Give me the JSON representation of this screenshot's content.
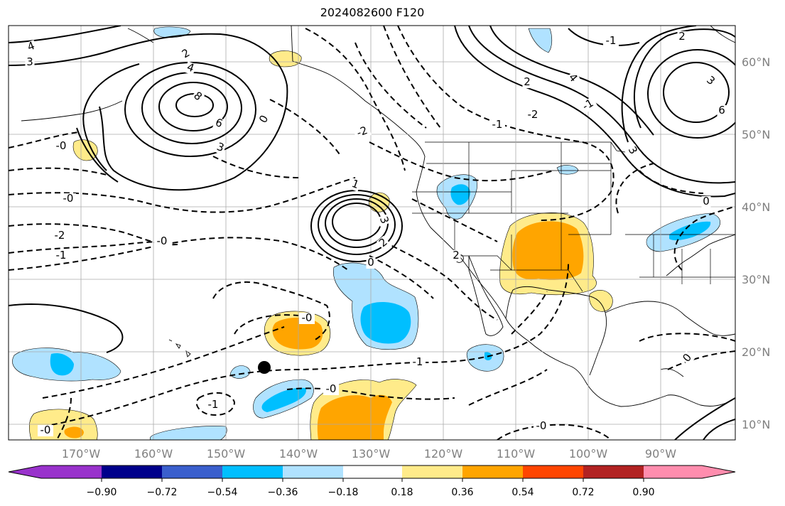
{
  "title": "2024082600 F120",
  "map": {
    "lon_labels": [
      "170°W",
      "160°W",
      "150°W",
      "140°W",
      "130°W",
      "120°W",
      "110°W",
      "100°W",
      "90°W"
    ],
    "lat_labels": [
      "60°N",
      "50°N",
      "40°N",
      "30°N",
      "20°N",
      "10°N"
    ],
    "contour_labels": [
      "4",
      "3",
      "2",
      "4",
      "8",
      "6",
      "3",
      "0",
      "-0",
      "-0",
      "-2",
      "-1",
      "-0",
      "1",
      "3",
      "2",
      "0",
      "-2",
      "-1",
      "2",
      "-1",
      "-0",
      "-0",
      "-1",
      "-2",
      "-0",
      "-2",
      "-1",
      "3",
      "2",
      "-1",
      "2",
      "4",
      "3",
      "6",
      "0",
      "-0",
      "0"
    ],
    "colors": {
      "contour": "#000000",
      "grid": "#aaaaaa",
      "pos_light": "#ffeb8a",
      "pos_mid": "#ffa500",
      "neg_light": "#b0e2ff",
      "neg_mid": "#00bfff",
      "marker": "#000000"
    }
  },
  "colorbar": {
    "tick_labels": [
      "−0.90",
      "−0.72",
      "−0.54",
      "−0.36",
      "−0.18",
      "0.18",
      "0.36",
      "0.54",
      "0.72",
      "0.90"
    ],
    "colors": [
      "#9932cc",
      "#00008b",
      "#3a5fcd",
      "#00bfff",
      "#b0e2ff",
      "#ffffff",
      "#ffeb8a",
      "#ffa500",
      "#ff4500",
      "#b22222",
      "#ff8dae"
    ]
  }
}
